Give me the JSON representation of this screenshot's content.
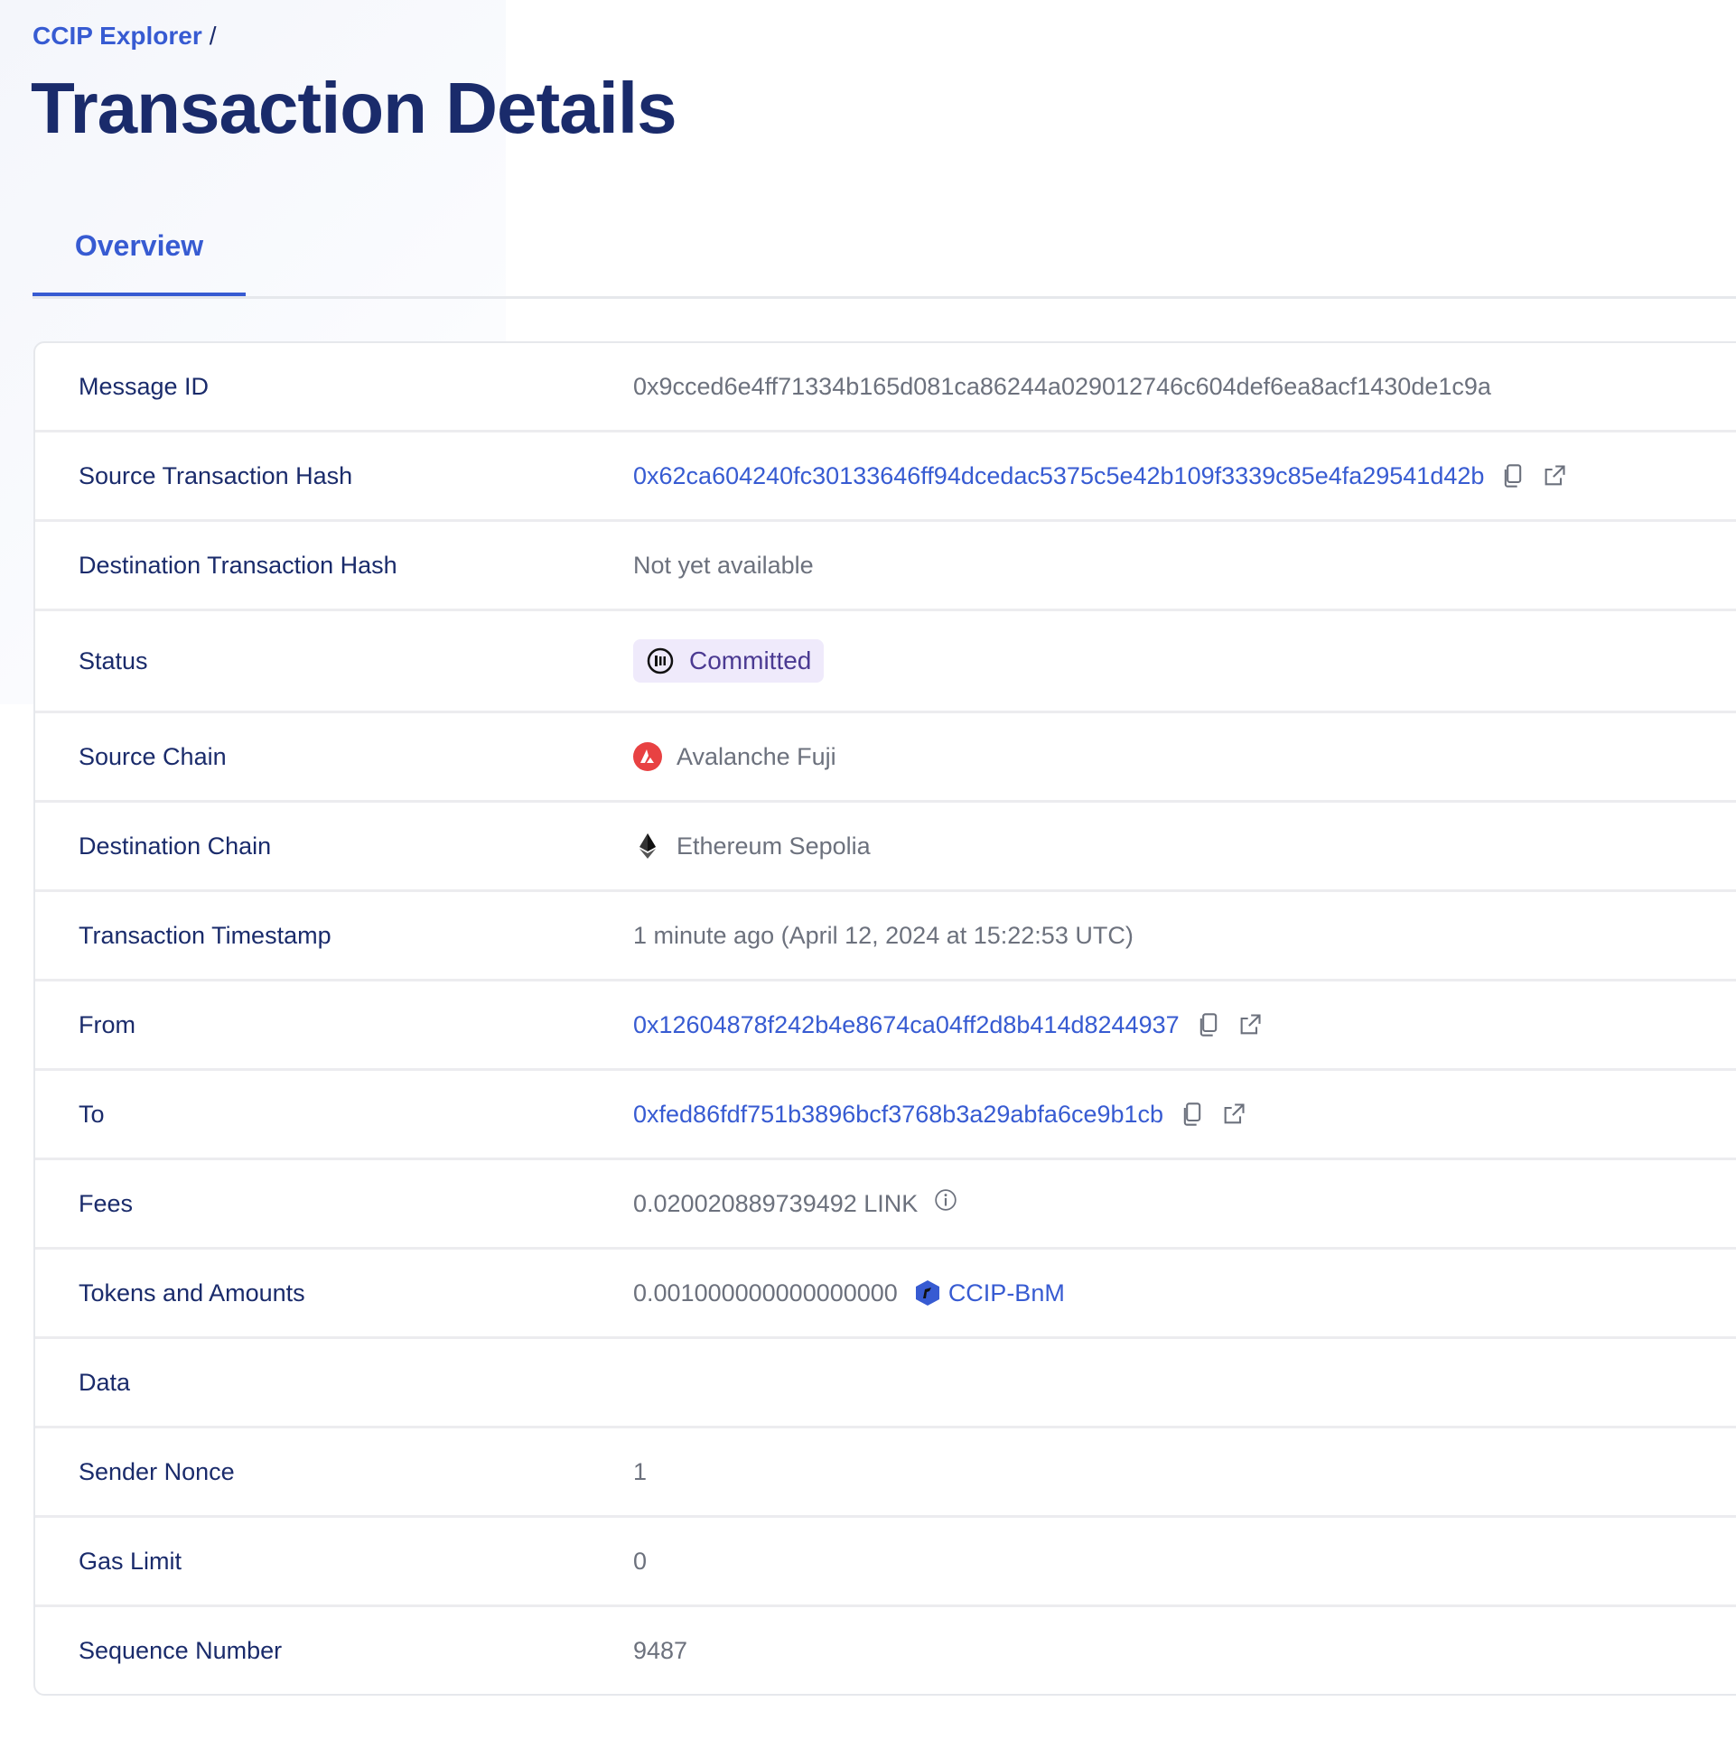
{
  "breadcrumb": {
    "root": "CCIP Explorer",
    "separator": "/"
  },
  "page_title": "Transaction Details",
  "tabs": [
    {
      "label": "Overview",
      "active": true
    }
  ],
  "colors": {
    "accent": "#375bd2",
    "title": "#1a2b6b",
    "status_bg": "#efeafb",
    "status_text": "#4b3a92",
    "avalanche": "#e84142"
  },
  "details": {
    "message_id": {
      "label": "Message ID",
      "value": "0x9cced6e4ff71334b165d081ca86244a029012746c604def6ea8acf1430de1c9a"
    },
    "source_tx": {
      "label": "Source Transaction Hash",
      "value": "0x62ca604240fc30133646ff94dcedac5375c5e42b109f3339c85e4fa29541d42b"
    },
    "dest_tx": {
      "label": "Destination Transaction Hash",
      "value": "Not yet available"
    },
    "status": {
      "label": "Status",
      "value": "Committed",
      "icon": "pause-circle-icon"
    },
    "source_chain": {
      "label": "Source Chain",
      "value": "Avalanche Fuji",
      "icon": "avalanche-icon"
    },
    "dest_chain": {
      "label": "Destination Chain",
      "value": "Ethereum Sepolia",
      "icon": "ethereum-icon"
    },
    "timestamp": {
      "label": "Transaction Timestamp",
      "value": "1 minute ago (April 12, 2024 at 15:22:53 UTC)"
    },
    "from": {
      "label": "From",
      "value": "0x12604878f242b4e8674ca04ff2d8b414d8244937"
    },
    "to": {
      "label": "To",
      "value": "0xfed86fdf751b3896bcf3768b3a29abfa6ce9b1cb"
    },
    "fees": {
      "label": "Fees",
      "value": "0.020020889739492 LINK"
    },
    "tokens": {
      "label": "Tokens and Amounts",
      "amount": "0.001000000000000000",
      "token": "CCIP-BnM"
    },
    "data": {
      "label": "Data",
      "value": ""
    },
    "sender_nonce": {
      "label": "Sender Nonce",
      "value": "1"
    },
    "gas_limit": {
      "label": "Gas Limit",
      "value": "0"
    },
    "sequence_number": {
      "label": "Sequence Number",
      "value": "9487"
    }
  }
}
